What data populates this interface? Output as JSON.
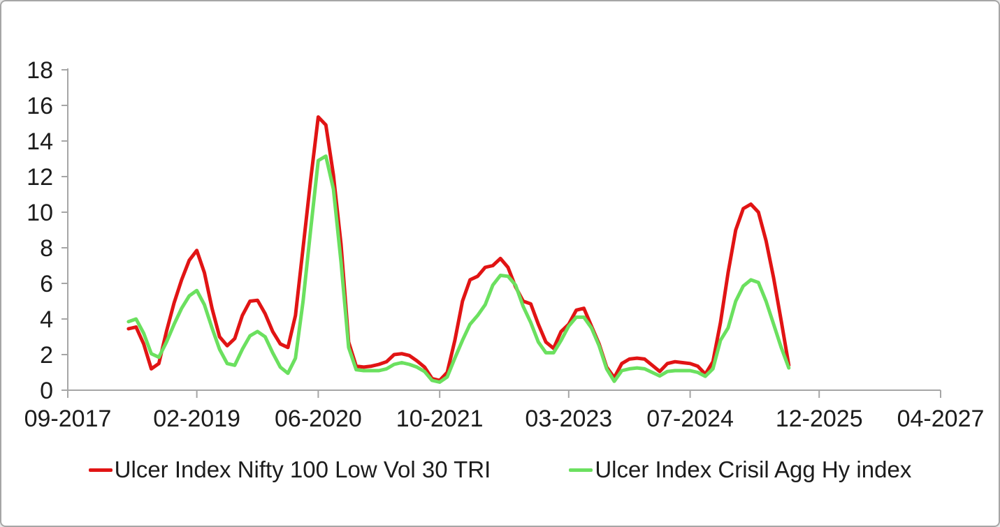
{
  "frame": {
    "background": "#ffffff",
    "border_color": "#a6a6a6"
  },
  "chart_data": {
    "type": "line",
    "title": "",
    "xlabel": "",
    "ylabel": "",
    "grid": false,
    "legend_position": "bottom",
    "axis_color": "#a6a6a6",
    "label_color": "#1c1c1c",
    "y_axis": {
      "min": 0,
      "max": 18,
      "step": 2,
      "tick_labels": [
        "0",
        "2",
        "4",
        "6",
        "8",
        "10",
        "12",
        "14",
        "16",
        "18"
      ]
    },
    "x_axis": {
      "start": "09-2017",
      "end": "04-2027",
      "total_months": 115,
      "tick_labels": [
        "09-2017",
        "02-2019",
        "06-2020",
        "10-2021",
        "03-2023",
        "07-2024",
        "12-2025",
        "04-2027"
      ]
    },
    "x": [
      "05-2018",
      "06-2018",
      "07-2018",
      "08-2018",
      "09-2018",
      "10-2018",
      "11-2018",
      "12-2018",
      "01-2019",
      "02-2019",
      "03-2019",
      "04-2019",
      "05-2019",
      "06-2019",
      "07-2019",
      "08-2019",
      "09-2019",
      "10-2019",
      "11-2019",
      "12-2019",
      "01-2020",
      "02-2020",
      "03-2020",
      "04-2020",
      "05-2020",
      "06-2020",
      "07-2020",
      "08-2020",
      "09-2020",
      "10-2020",
      "11-2020",
      "12-2020",
      "01-2021",
      "02-2021",
      "03-2021",
      "04-2021",
      "05-2021",
      "06-2021",
      "07-2021",
      "08-2021",
      "09-2021",
      "10-2021",
      "11-2021",
      "12-2021",
      "01-2022",
      "02-2022",
      "03-2022",
      "04-2022",
      "05-2022",
      "06-2022",
      "07-2022",
      "08-2022",
      "09-2022",
      "10-2022",
      "11-2022",
      "12-2022",
      "01-2023",
      "02-2023",
      "03-2023",
      "04-2023",
      "05-2023",
      "06-2023",
      "07-2023",
      "08-2023",
      "09-2023",
      "10-2023",
      "11-2023",
      "12-2023",
      "01-2024",
      "02-2024",
      "03-2024",
      "04-2024",
      "05-2024",
      "06-2024",
      "07-2024",
      "08-2024",
      "09-2024",
      "10-2024",
      "11-2024",
      "12-2024",
      "01-2025",
      "02-2025",
      "03-2025",
      "04-2025",
      "05-2025",
      "06-2025",
      "07-2025",
      "08-2025"
    ],
    "series": [
      {
        "name": "Ulcer Index Nifty 100 Low Vol 30 TRI",
        "color": "#e11414",
        "values": [
          3.45,
          3.55,
          2.6,
          1.2,
          1.5,
          3.3,
          4.9,
          6.2,
          7.3,
          7.85,
          6.6,
          4.6,
          3.0,
          2.5,
          2.9,
          4.2,
          5.0,
          5.05,
          4.3,
          3.3,
          2.6,
          2.4,
          4.2,
          8.0,
          11.8,
          15.35,
          14.9,
          12.1,
          8.2,
          2.7,
          1.35,
          1.3,
          1.35,
          1.45,
          1.6,
          2.0,
          2.05,
          1.95,
          1.65,
          1.3,
          0.65,
          0.55,
          1.0,
          2.8,
          5.0,
          6.2,
          6.4,
          6.9,
          7.0,
          7.4,
          6.9,
          5.8,
          5.0,
          4.85,
          3.7,
          2.7,
          2.35,
          3.3,
          3.7,
          4.5,
          4.6,
          3.6,
          2.6,
          1.3,
          0.7,
          1.5,
          1.75,
          1.8,
          1.75,
          1.4,
          1.05,
          1.5,
          1.6,
          1.55,
          1.5,
          1.35,
          0.9,
          1.6,
          3.8,
          6.6,
          9.0,
          10.2,
          10.45,
          10.0,
          8.4,
          6.3,
          3.9,
          1.4
        ]
      },
      {
        "name": "Ulcer Index Crisil Agg Hy index",
        "color": "#6be05f",
        "values": [
          3.85,
          4.0,
          3.2,
          2.05,
          1.85,
          2.7,
          3.7,
          4.6,
          5.3,
          5.6,
          4.8,
          3.5,
          2.3,
          1.5,
          1.4,
          2.3,
          3.05,
          3.3,
          3.0,
          2.1,
          1.3,
          0.95,
          1.8,
          5.0,
          9.0,
          12.9,
          13.15,
          11.3,
          7.2,
          2.4,
          1.15,
          1.1,
          1.1,
          1.1,
          1.2,
          1.45,
          1.55,
          1.45,
          1.3,
          1.05,
          0.55,
          0.45,
          0.75,
          1.8,
          2.8,
          3.7,
          4.2,
          4.8,
          5.9,
          6.45,
          6.4,
          5.9,
          4.7,
          3.8,
          2.7,
          2.1,
          2.1,
          2.8,
          3.6,
          4.1,
          4.1,
          3.5,
          2.5,
          1.2,
          0.5,
          1.1,
          1.2,
          1.25,
          1.2,
          1.0,
          0.8,
          1.05,
          1.1,
          1.1,
          1.1,
          1.0,
          0.78,
          1.2,
          2.8,
          3.5,
          5.0,
          5.85,
          6.2,
          6.05,
          5.0,
          3.7,
          2.4,
          1.25
        ]
      }
    ]
  }
}
